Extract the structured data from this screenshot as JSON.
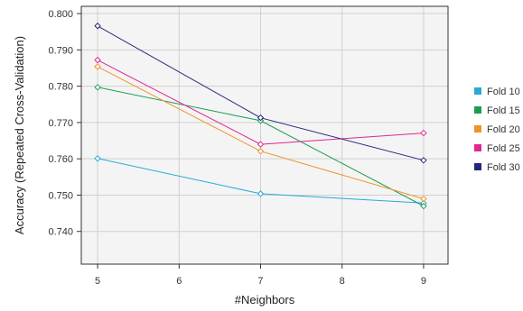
{
  "chart_data": {
    "type": "line",
    "title": "",
    "xlabel": "#Neighbors",
    "ylabel": "Accuracy (Repeated Cross-Validation)",
    "x": [
      5,
      7,
      9
    ],
    "xlim": [
      4.8,
      9.3
    ],
    "ylim": [
      0.731,
      0.802
    ],
    "xticks": [
      5,
      6,
      7,
      8,
      9
    ],
    "yticks": [
      0.74,
      0.75,
      0.76,
      0.77,
      0.78,
      0.79,
      0.8
    ],
    "xtick_labels": [
      "5",
      "6",
      "7",
      "8",
      "9"
    ],
    "ytick_labels": [
      "0.740",
      "0.750",
      "0.760",
      "0.770",
      "0.780",
      "0.790",
      "0.800"
    ],
    "grid": true,
    "legend_position": "right",
    "marker": "open-diamond",
    "series": [
      {
        "name": "Fold 10",
        "color": "#29a9d6",
        "values": [
          0.7601,
          0.7504,
          0.7478
        ]
      },
      {
        "name": "Fold 15",
        "color": "#1b9e53",
        "values": [
          0.7797,
          0.7705,
          0.747
        ]
      },
      {
        "name": "Fold 20",
        "color": "#f0932a",
        "values": [
          0.7854,
          0.7621,
          0.749
        ]
      },
      {
        "name": "Fold 25",
        "color": "#e0268f",
        "values": [
          0.7872,
          0.764,
          0.7671
        ]
      },
      {
        "name": "Fold 30",
        "color": "#27277a",
        "values": [
          0.7966,
          0.7713,
          0.7596
        ]
      }
    ]
  }
}
